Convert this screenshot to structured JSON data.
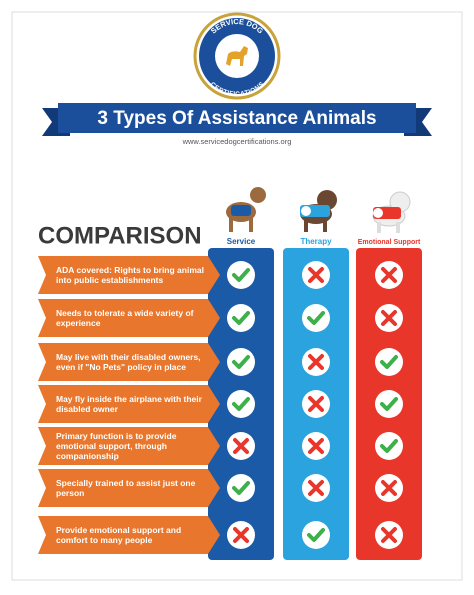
{
  "logo": {
    "top_text": "SERVICE DOG",
    "bottom_text": "CERTIFICATIONS"
  },
  "banner": {
    "title": "3 Types Of Assistance Animals",
    "url": "www.servicedogcertifications.org"
  },
  "comparison": {
    "heading": "COMPARISON",
    "columns": [
      {
        "name": "Service",
        "color": "#1b5aa6"
      },
      {
        "name": "Therapy",
        "color": "#2aa3de"
      },
      {
        "name": "Emotional Support",
        "color": "#e8362b"
      }
    ],
    "rows": [
      {
        "label": "ADA covered: Rights to bring animal into public establishments",
        "checks": [
          true,
          false,
          false
        ]
      },
      {
        "label": "Needs to tolerate a wide variety of experience",
        "checks": [
          true,
          true,
          false
        ]
      },
      {
        "label": "May live with their disabled owners, even if \"No Pets\" policy in place",
        "checks": [
          true,
          false,
          true
        ]
      },
      {
        "label": "May fly inside the airplane with their disabled owner",
        "checks": [
          true,
          false,
          true
        ]
      },
      {
        "label": "Primary function is to provide emotional support, through companionship",
        "checks": [
          false,
          false,
          true
        ]
      },
      {
        "label": "Specially trained to assist just one person",
        "checks": [
          true,
          false,
          false
        ]
      },
      {
        "label": "Provide emotional support and comfort to many people",
        "checks": [
          false,
          true,
          false
        ]
      }
    ]
  }
}
